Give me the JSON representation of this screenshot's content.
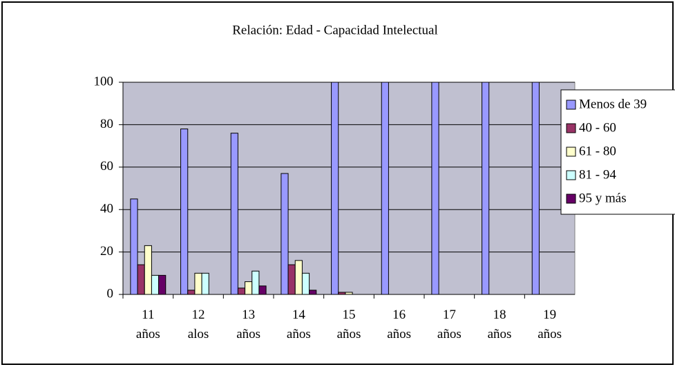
{
  "chart_data": {
    "type": "bar",
    "title": "Relación: Edad - Capacidad Intelectual",
    "categories": [
      "11 años",
      "12 alos",
      "13 años",
      "14 años",
      "15 años",
      "16 años",
      "17 años",
      "18 años",
      "19 años"
    ],
    "series": [
      {
        "name": "Menos de 39",
        "color": "#9999ff",
        "values": [
          45,
          78,
          76,
          57,
          100,
          100,
          100,
          100,
          100
        ]
      },
      {
        "name": "40 - 60",
        "color": "#993366",
        "values": [
          14,
          2,
          3,
          14,
          1,
          0,
          0,
          0,
          0
        ]
      },
      {
        "name": "61 - 80",
        "color": "#ffffcc",
        "values": [
          23,
          10,
          6,
          16,
          1,
          0,
          0,
          0,
          0
        ]
      },
      {
        "name": "81 - 94",
        "color": "#ccffff",
        "values": [
          9,
          10,
          11,
          10,
          0,
          0,
          0,
          0,
          0
        ]
      },
      {
        "name": "95 y más",
        "color": "#660066",
        "values": [
          9,
          0,
          4,
          2,
          0,
          0,
          0,
          0,
          0
        ]
      }
    ],
    "ylim": [
      0,
      100
    ],
    "yticks": [
      0,
      20,
      40,
      60,
      80,
      100
    ],
    "grid": true,
    "legend": "right"
  }
}
